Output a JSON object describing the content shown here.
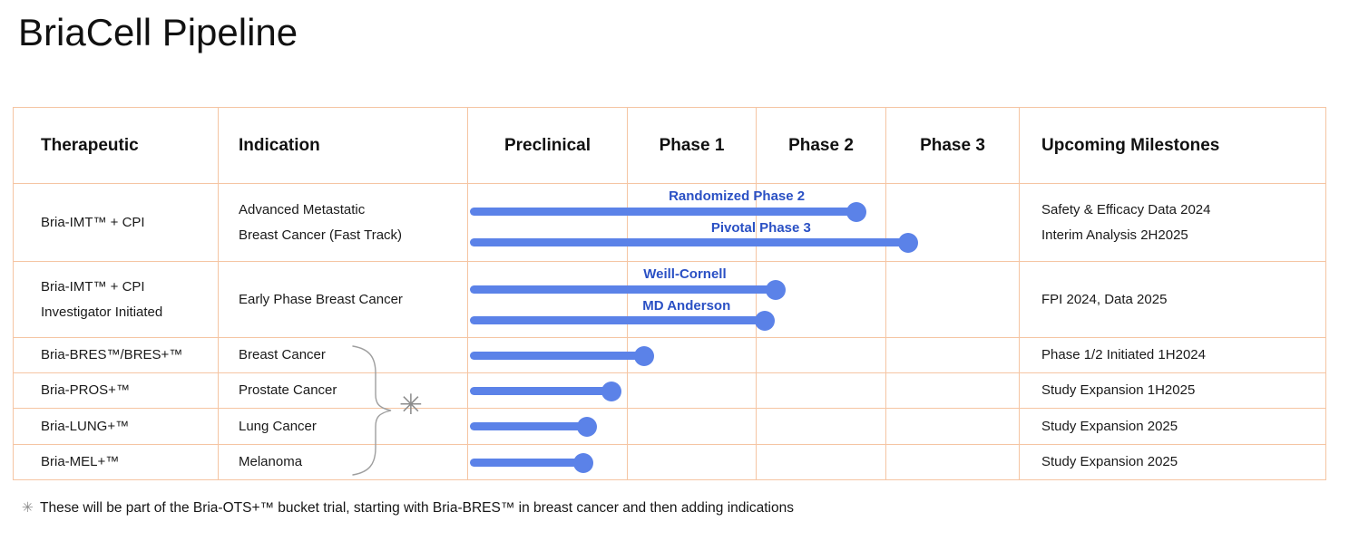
{
  "title": "BriaCell Pipeline",
  "colors": {
    "bar_blue": "#5B82E8",
    "label_blue": "#2A50C4",
    "grid_line": "#F5C5A3",
    "text_dark": "#1A1A1A",
    "muted_gray": "#8C8C8C"
  },
  "table": {
    "headers": [
      "Therapeutic",
      "Indication",
      "Preclinical",
      "Phase 1",
      "Phase 2",
      "Phase 3",
      "Upcoming Milestones"
    ],
    "rows": [
      {
        "therapeutic": "Bria-IMT™ + CPI",
        "indication": "Advanced Metastatic\nBreast Cancer (Fast Track)",
        "milestones": "Safety & Efficacy Data 2024\nInterim Analysis 2H2025"
      },
      {
        "therapeutic": "Bria-IMT™ + CPI\nInvestigator Initiated",
        "indication": "Early Phase Breast Cancer",
        "milestones": "FPI 2024, Data 2025"
      },
      {
        "therapeutic": "Bria-BRES™/BRES+™",
        "indication": "Breast Cancer",
        "milestones": "Phase 1/2 Initiated 1H2024"
      },
      {
        "therapeutic": "Bria-PROS+™",
        "indication": "Prostate Cancer",
        "milestones": "Study Expansion 1H2025"
      },
      {
        "therapeutic": "Bria-LUNG+™",
        "indication": "Lung Cancer",
        "milestones": "Study Expansion 2025"
      },
      {
        "therapeutic": "Bria-MEL+™",
        "indication": "Melanoma",
        "milestones": "Study Expansion 2025"
      }
    ]
  },
  "chart_data": {
    "type": "gantt",
    "phases": [
      "Preclinical",
      "Phase 1",
      "Phase 2",
      "Phase 3"
    ],
    "note": "end_pct = bar endpoint (dot center) as % of the Preclinical-to-Phase-3 span; all bars start at the left edge of Preclinical",
    "rows": [
      {
        "bars": [
          {
            "label": "Randomized Phase 2",
            "end_phase": "Phase 2 (mid-late)",
            "end_pct": 70.4,
            "label_center_pct": 48.7
          },
          {
            "label": "Pivotal Phase 3",
            "end_phase": "Phase 3 (start)",
            "end_pct": 79.8,
            "label_center_pct": 53.1
          }
        ]
      },
      {
        "bars": [
          {
            "label": "Weill-Cornell",
            "end_phase": "Phase 2 (start)",
            "end_pct": 55.8,
            "label_center_pct": 39.3
          },
          {
            "label": "MD Anderson",
            "end_phase": "Phase 1/Phase 2 boundary",
            "end_pct": 53.8,
            "label_center_pct": 39.6
          }
        ]
      },
      {
        "bars": [
          {
            "end_phase": "Phase 1 (early)",
            "end_pct": 31.9
          }
        ]
      },
      {
        "bars": [
          {
            "end_phase": "Preclinical (late)",
            "end_pct": 26.0
          }
        ]
      },
      {
        "bars": [
          {
            "end_phase": "Preclinical (mid)",
            "end_pct": 21.5
          }
        ]
      },
      {
        "bars": [
          {
            "end_phase": "Preclinical (mid)",
            "end_pct": 20.9
          }
        ]
      }
    ]
  },
  "group_annotation": {
    "marker": "✳",
    "groups": "Bria-BRES™/BRES+™, Bria-PROS+™, Bria-LUNG+™, Bria-MEL+™"
  },
  "footnote": {
    "marker": "✳",
    "text": "These will be part of the Bria-OTS+™ bucket trial, starting with Bria-BRES™ in breast cancer and then adding indications"
  }
}
